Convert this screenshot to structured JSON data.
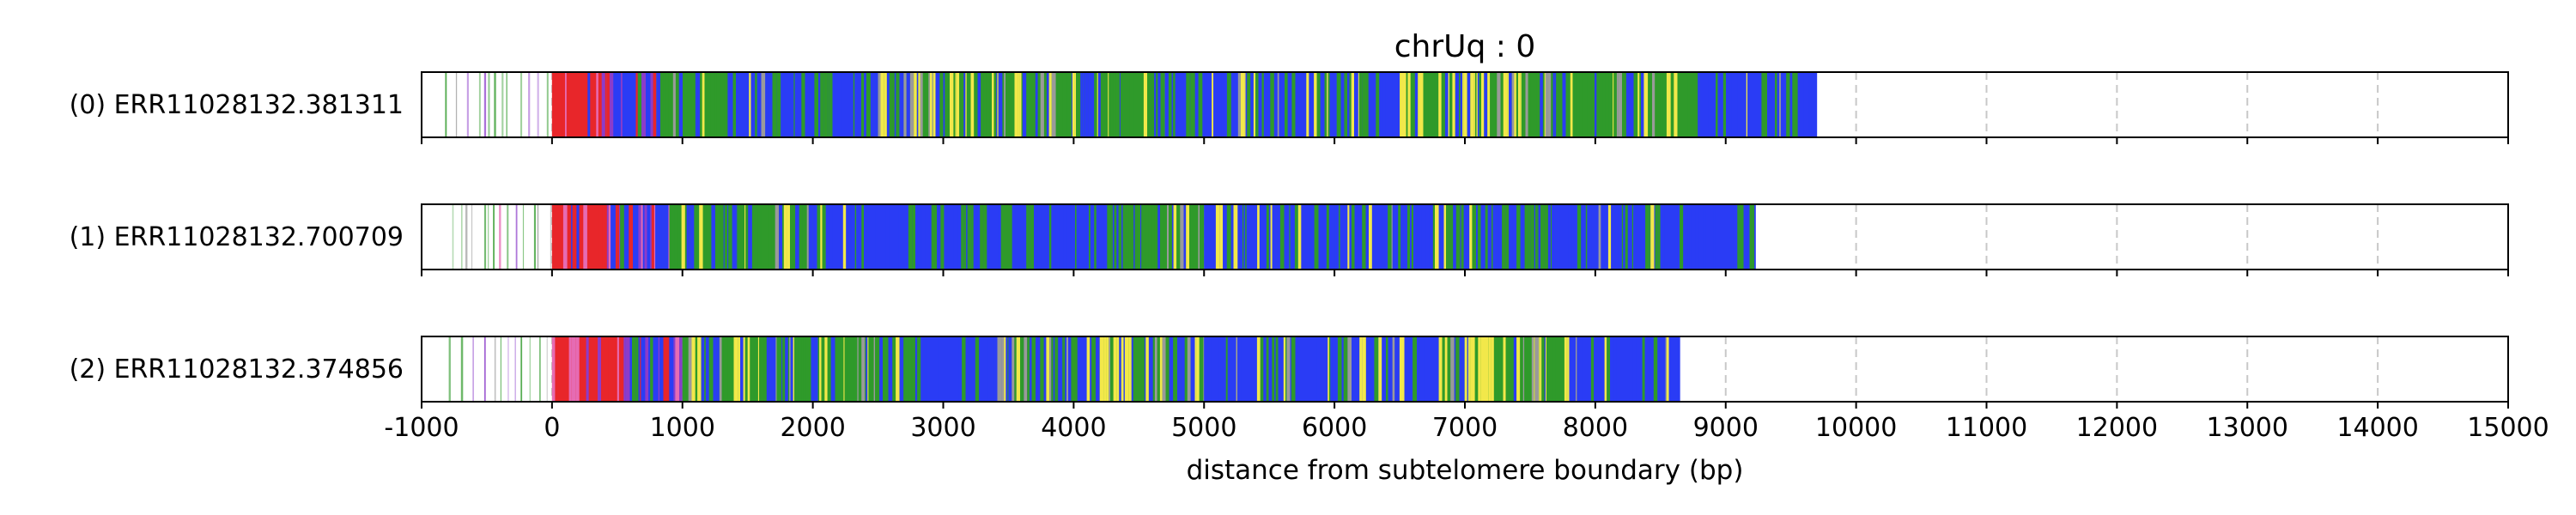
{
  "chart_data": {
    "type": "track",
    "title": "chrUq : 0",
    "xlabel": "distance from subtelomere boundary (bp)",
    "xlim": [
      -1000,
      15000
    ],
    "xticks": [
      -1000,
      0,
      1000,
      2000,
      3000,
      4000,
      5000,
      6000,
      7000,
      8000,
      9000,
      10000,
      11000,
      12000,
      13000,
      14000,
      15000
    ],
    "grid": "vertical dashed",
    "colors": {
      "red": "#e8262a",
      "blue": "#2a3cf5",
      "green": "#2f9a2a",
      "yellow": "#f2e84a",
      "pink": "#e66bb3",
      "purple": "#8c3cc9",
      "grey": "#9a9a9a"
    },
    "tracks": [
      {
        "label": "(0) ERR11028132.381311",
        "start": -1000,
        "end": 9700,
        "segments": [
          {
            "from": -900,
            "to": 0,
            "color": "sparse_green"
          },
          {
            "from": 0,
            "to": 420,
            "color": "red"
          },
          {
            "from": 420,
            "to": 800,
            "color": "purple"
          },
          {
            "from": 800,
            "to": 1400,
            "color": "green"
          },
          {
            "from": 1400,
            "to": 2500,
            "color": "blue"
          },
          {
            "from": 2500,
            "to": 3600,
            "color": "yellow"
          },
          {
            "from": 3600,
            "to": 4700,
            "color": "green"
          },
          {
            "from": 4700,
            "to": 6500,
            "color": "blue"
          },
          {
            "from": 6500,
            "to": 7700,
            "color": "yellow"
          },
          {
            "from": 7700,
            "to": 8800,
            "color": "green"
          },
          {
            "from": 8800,
            "to": 9700,
            "color": "blue"
          }
        ]
      },
      {
        "label": "(1) ERR11028132.700709",
        "start": -1000,
        "end": 9230,
        "segments": [
          {
            "from": -870,
            "to": 0,
            "color": "sparse_green"
          },
          {
            "from": 0,
            "to": 450,
            "color": "red"
          },
          {
            "from": 450,
            "to": 900,
            "color": "purple"
          },
          {
            "from": 900,
            "to": 2100,
            "color": "green"
          },
          {
            "from": 2100,
            "to": 4300,
            "color": "blue"
          },
          {
            "from": 4300,
            "to": 5000,
            "color": "green"
          },
          {
            "from": 5000,
            "to": 9230,
            "color": "blue"
          }
        ]
      },
      {
        "label": "(2) ERR11028132.374856",
        "start": -1000,
        "end": 8650,
        "segments": [
          {
            "from": -900,
            "to": 0,
            "color": "sparse_green"
          },
          {
            "from": 0,
            "to": 550,
            "color": "red"
          },
          {
            "from": 550,
            "to": 1000,
            "color": "purple"
          },
          {
            "from": 1000,
            "to": 1500,
            "color": "yellow"
          },
          {
            "from": 1500,
            "to": 2800,
            "color": "green"
          },
          {
            "from": 2800,
            "to": 4200,
            "color": "blue"
          },
          {
            "from": 4200,
            "to": 5000,
            "color": "yellow"
          },
          {
            "from": 5000,
            "to": 6800,
            "color": "blue"
          },
          {
            "from": 6800,
            "to": 7800,
            "color": "yellow"
          },
          {
            "from": 7800,
            "to": 8650,
            "color": "blue"
          }
        ]
      }
    ]
  }
}
